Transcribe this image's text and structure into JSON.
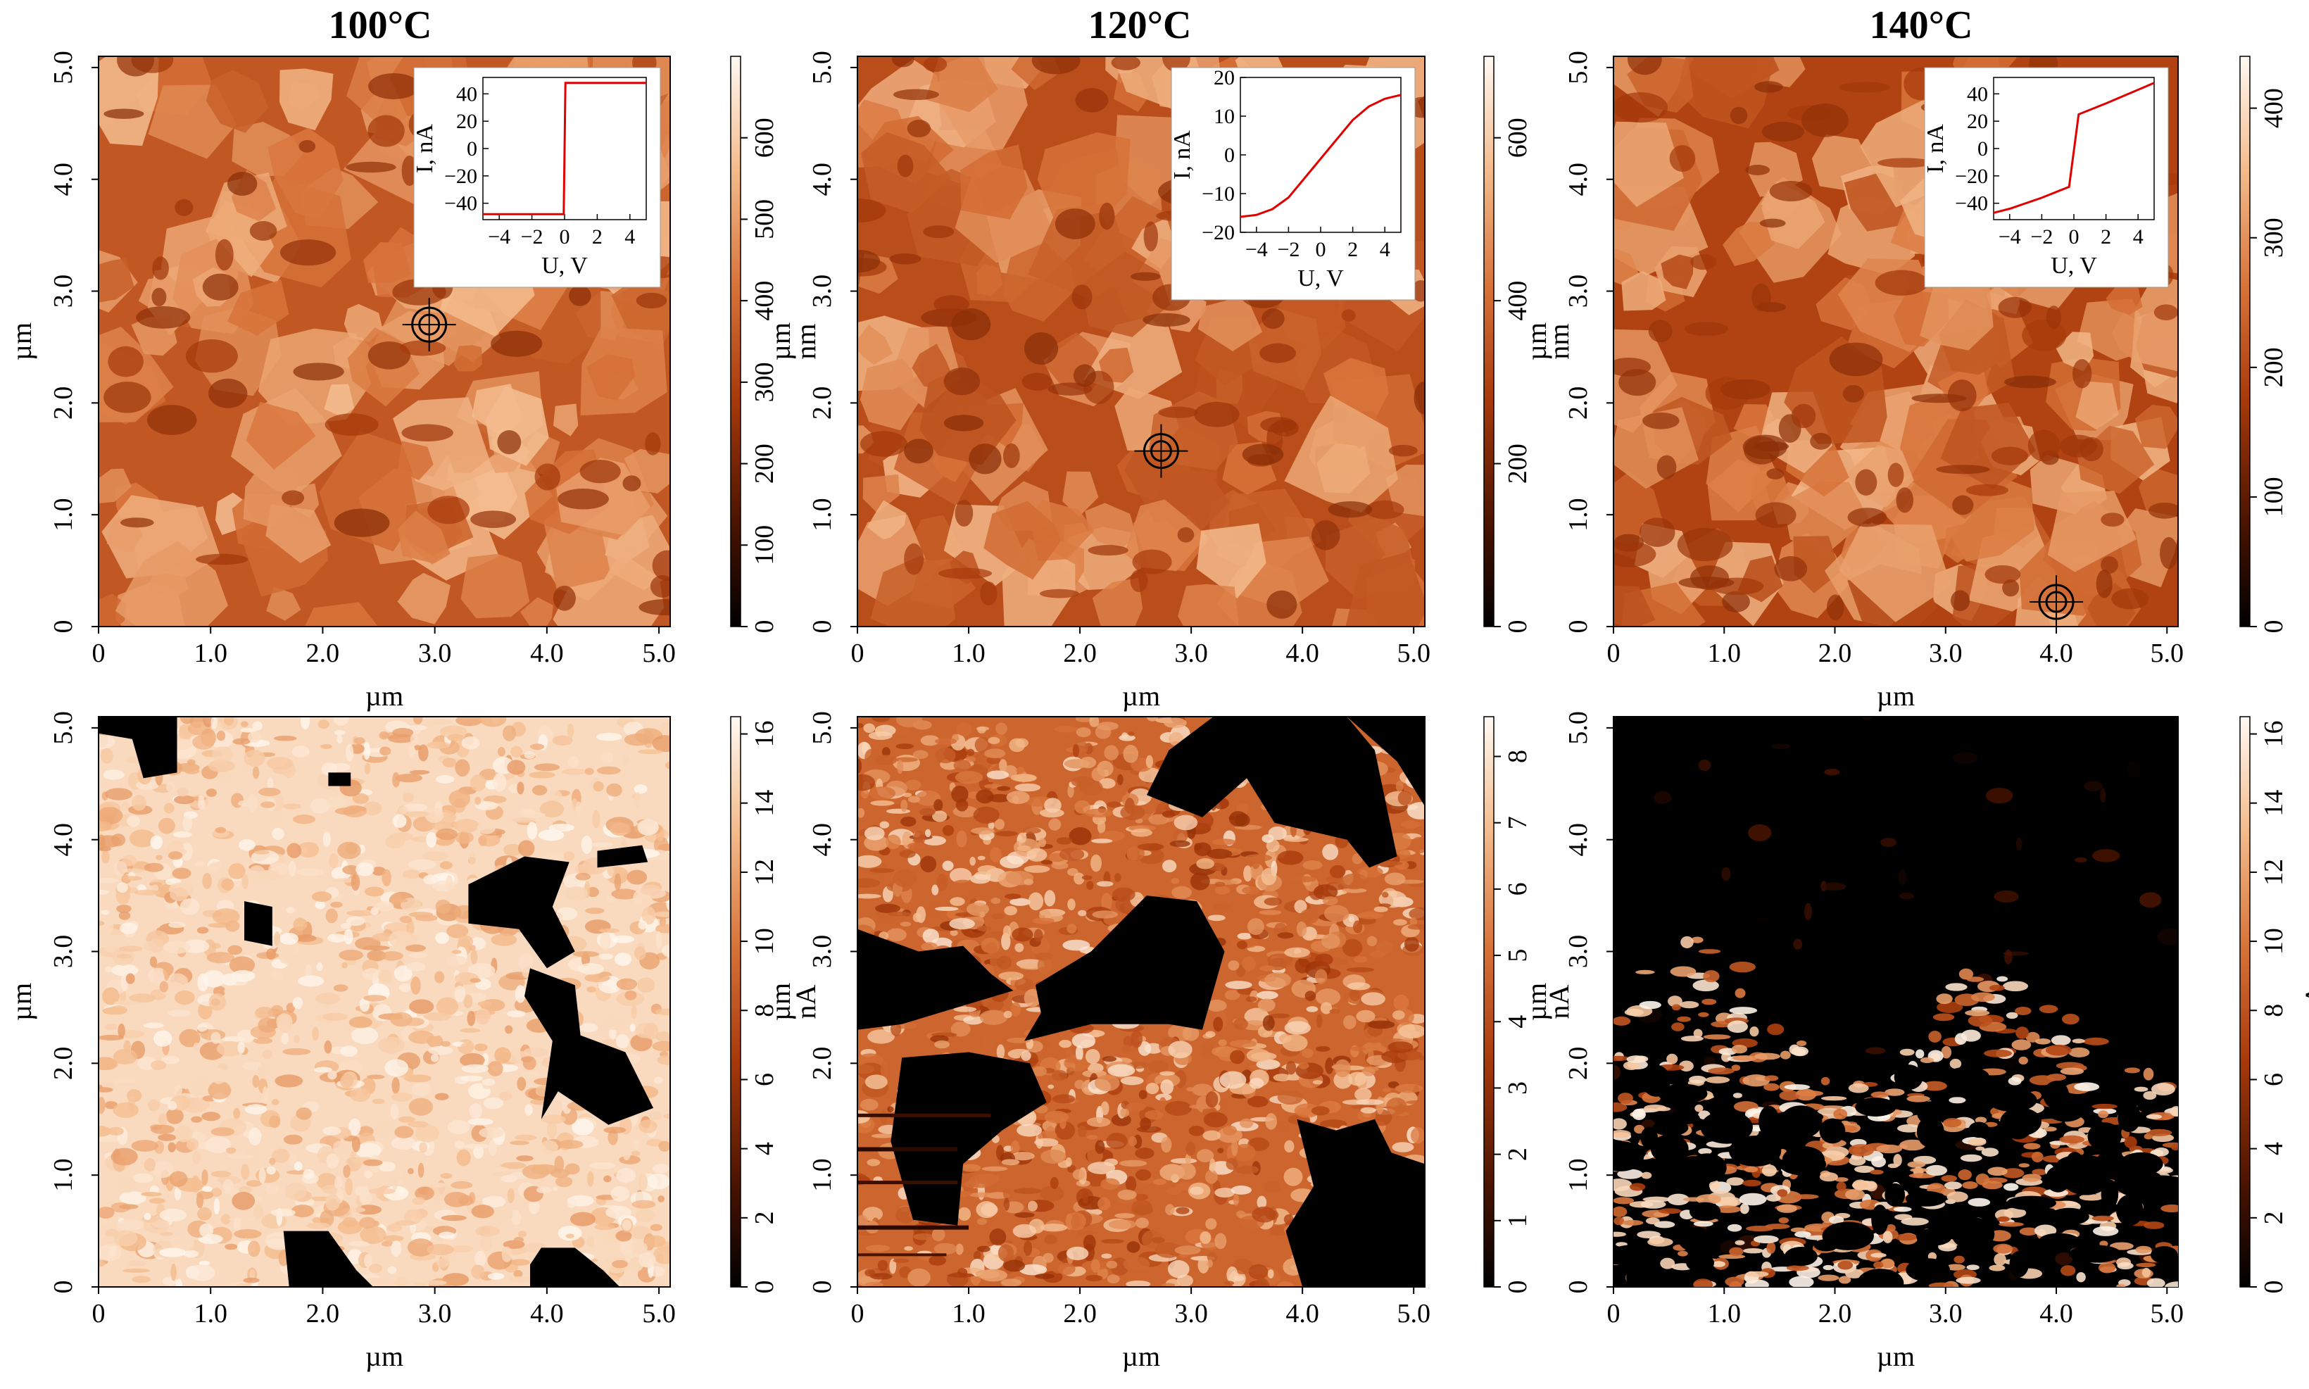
{
  "figure": {
    "columns": [
      {
        "title": "100°C"
      },
      {
        "title": "120°C"
      },
      {
        "title": "140°C"
      }
    ]
  },
  "chart_data": [
    {
      "type": "heatmap",
      "panel": "topography 100°C",
      "xlabel": "µm",
      "ylabel": "µm",
      "xticks": [
        "0",
        "1.0",
        "2.0",
        "3.0",
        "4.0",
        "5.0"
      ],
      "yticks": [
        "0",
        "1.0",
        "2.0",
        "3.0",
        "4.0",
        "5.0"
      ],
      "xlim": [
        0,
        5.1
      ],
      "ylim": [
        0,
        5.1
      ],
      "colorbar": {
        "label": "nm",
        "range": [
          0,
          700
        ],
        "ticks": [
          "0",
          "100",
          "200",
          "300",
          "400",
          "500",
          "600"
        ]
      },
      "marker": {
        "x": 2.95,
        "y": 2.7
      }
    },
    {
      "type": "heatmap",
      "panel": "topography 120°C",
      "xlabel": "µm",
      "ylabel": "µm",
      "xticks": [
        "0",
        "1.0",
        "2.0",
        "3.0",
        "4.0",
        "5.0"
      ],
      "yticks": [
        "0",
        "1.0",
        "2.0",
        "3.0",
        "4.0",
        "5.0"
      ],
      "xlim": [
        0,
        5.1
      ],
      "ylim": [
        0,
        5.1
      ],
      "colorbar": {
        "label": "nm",
        "range": [
          0,
          700
        ],
        "ticks": [
          "0",
          "200",
          "400",
          "600"
        ]
      },
      "marker": {
        "x": 2.73,
        "y": 1.57
      }
    },
    {
      "type": "heatmap",
      "panel": "topography 140°C",
      "xlabel": "µm",
      "ylabel": "µm",
      "xticks": [
        "0",
        "1.0",
        "2.0",
        "3.0",
        "4.0",
        "5.0"
      ],
      "yticks": [
        "0",
        "1.0",
        "2.0",
        "3.0",
        "4.0",
        "5.0"
      ],
      "xlim": [
        0,
        5.1
      ],
      "ylim": [
        0,
        5.1
      ],
      "colorbar": {
        "label": "nm",
        "range": [
          0,
          440
        ],
        "ticks": [
          "0",
          "100",
          "200",
          "300",
          "400"
        ]
      },
      "marker": {
        "x": 4.0,
        "y": 0.22
      }
    },
    {
      "type": "line",
      "panel": "I-V inset 100°C",
      "xlabel": "U, V",
      "ylabel": "I, nA",
      "xticks": [
        "−4",
        "−2",
        "0",
        "2",
        "4"
      ],
      "yticks": [
        "−40",
        "−20",
        "0",
        "20",
        "40"
      ],
      "xlim": [
        -5,
        5
      ],
      "ylim": [
        -52,
        52
      ],
      "series": [
        {
          "x": [
            -5,
            -0.05,
            0.05,
            5
          ],
          "y": [
            -48,
            -48,
            48,
            48
          ]
        }
      ]
    },
    {
      "type": "line",
      "panel": "I-V inset 120°C",
      "xlabel": "U, V",
      "ylabel": "I, nA",
      "xticks": [
        "−4",
        "−2",
        "0",
        "2",
        "4"
      ],
      "yticks": [
        "−20",
        "−10",
        "0",
        "10",
        "20"
      ],
      "xlim": [
        -5,
        5
      ],
      "ylim": [
        -20,
        20
      ],
      "series": [
        {
          "x": [
            -5,
            -4,
            -3,
            -2,
            -1,
            0,
            1,
            2,
            3,
            4,
            5
          ],
          "y": [
            -16,
            -15.5,
            -14,
            -11,
            -6,
            -1,
            4,
            9,
            12.5,
            14.5,
            15.5
          ]
        }
      ]
    },
    {
      "type": "line",
      "panel": "I-V inset 140°C",
      "xlabel": "U, V",
      "ylabel": "I, nA",
      "xticks": [
        "−4",
        "−2",
        "0",
        "2",
        "4"
      ],
      "yticks": [
        "−40",
        "−20",
        "0",
        "20",
        "40"
      ],
      "xlim": [
        -5,
        5
      ],
      "ylim": [
        -52,
        52
      ],
      "series": [
        {
          "x": [
            -5,
            -4,
            -2,
            -0.3,
            0.3,
            2,
            4,
            5
          ],
          "y": [
            -47,
            -44,
            -36,
            -28,
            25,
            33,
            43,
            48
          ]
        }
      ]
    },
    {
      "type": "heatmap",
      "panel": "current 100°C",
      "xlabel": "µm",
      "ylabel": "µm",
      "xticks": [
        "0",
        "1.0",
        "2.0",
        "3.0",
        "4.0",
        "5.0"
      ],
      "yticks": [
        "0",
        "1.0",
        "2.0",
        "3.0",
        "4.0",
        "5.0"
      ],
      "xlim": [
        0,
        5.1
      ],
      "ylim": [
        0,
        5.1
      ],
      "colorbar": {
        "label": "nA",
        "range": [
          0,
          16.5
        ],
        "ticks": [
          "0",
          "2",
          "4",
          "6",
          "8",
          "10",
          "12",
          "14",
          "16"
        ]
      }
    },
    {
      "type": "heatmap",
      "panel": "current 120°C",
      "xlabel": "µm",
      "ylabel": "µm",
      "xticks": [
        "0",
        "1.0",
        "2.0",
        "3.0",
        "4.0",
        "5.0"
      ],
      "yticks": [
        "0",
        "1.0",
        "2.0",
        "3.0",
        "4.0",
        "5.0"
      ],
      "xlim": [
        0,
        5.1
      ],
      "ylim": [
        0,
        5.1
      ],
      "colorbar": {
        "label": "nA",
        "range": [
          0,
          8.6
        ],
        "ticks": [
          "0",
          "1",
          "2",
          "3",
          "4",
          "5",
          "6",
          "7",
          "8"
        ]
      }
    },
    {
      "type": "heatmap",
      "panel": "current 140°C",
      "xlabel": "µm",
      "ylabel": "µm",
      "xticks": [
        "0",
        "1.0",
        "2.0",
        "3.0",
        "4.0",
        "5.0"
      ],
      "yticks": [
        "0",
        "1.0",
        "2.0",
        "3.0",
        "4.0",
        "5.0"
      ],
      "xlim": [
        0,
        5.1
      ],
      "ylim": [
        0,
        5.1
      ],
      "colorbar": {
        "label": "nA",
        "range": [
          0,
          16.5
        ],
        "ticks": [
          "0",
          "2",
          "4",
          "6",
          "8",
          "10",
          "12",
          "14",
          "16"
        ]
      }
    }
  ]
}
